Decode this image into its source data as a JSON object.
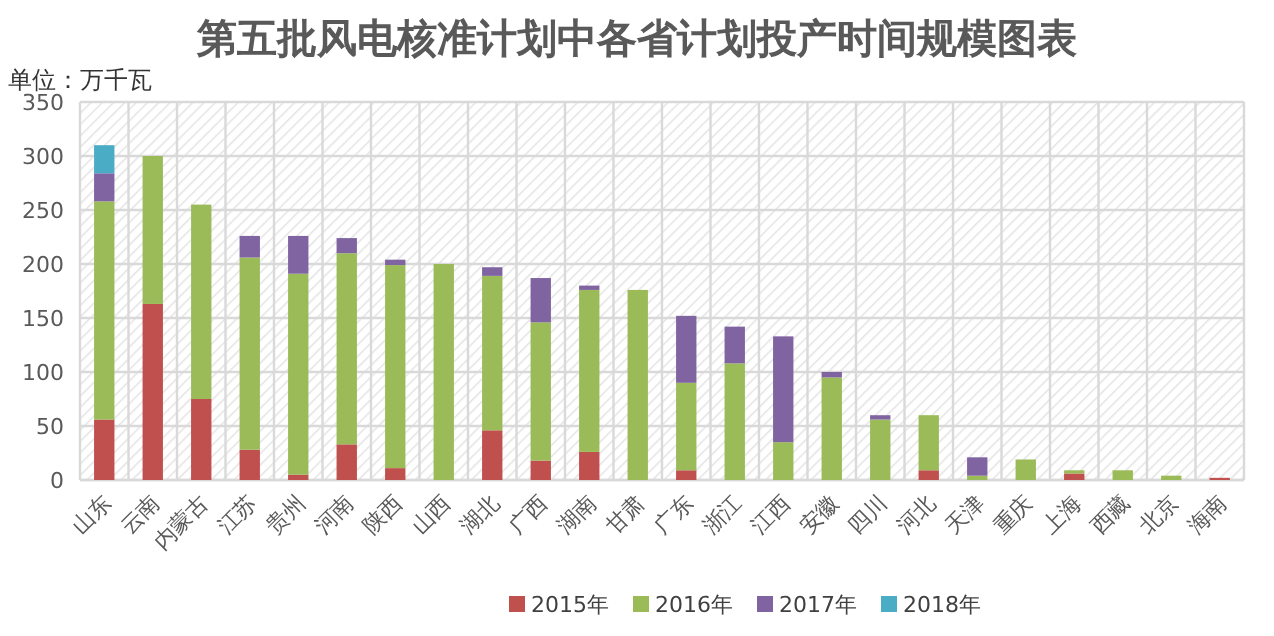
{
  "chart_data": {
    "type": "bar",
    "title": "第五批风电核准计划中各省计划投产时间规模图表",
    "ylabel": "单位：万千瓦",
    "stacked": true,
    "grid": true,
    "legend": "bottom",
    "categories": [
      "山东",
      "云南",
      "内蒙古",
      "江苏",
      "贵州",
      "河南",
      "陕西",
      "山西",
      "湖北",
      "广西",
      "湖南",
      "甘肃",
      "广东",
      "浙江",
      "江西",
      "安徽",
      "四川",
      "河北",
      "天津",
      "重庆",
      "上海",
      "西藏",
      "北京",
      "海南"
    ],
    "ylim": [
      0,
      350
    ],
    "yticks": [
      0,
      50,
      100,
      150,
      200,
      250,
      300,
      350
    ],
    "series": [
      {
        "name": "2015年",
        "color": "#c0504d",
        "values": [
          56,
          163,
          75,
          28,
          5,
          33,
          11,
          0,
          46,
          18,
          26,
          0,
          9,
          0,
          0,
          0,
          0,
          9,
          0,
          0,
          6,
          0,
          0,
          2
        ]
      },
      {
        "name": "2016年",
        "color": "#9bbb59",
        "values": [
          202,
          137,
          180,
          178,
          186,
          177,
          188,
          200,
          143,
          128,
          150,
          176,
          81,
          108,
          35,
          95,
          56,
          51,
          4,
          19,
          3,
          9,
          4,
          0
        ]
      },
      {
        "name": "2017年",
        "color": "#8064a2",
        "values": [
          26,
          0,
          0,
          20,
          35,
          14,
          5,
          0,
          8,
          41,
          4,
          0,
          62,
          34,
          98,
          5,
          4,
          0,
          17,
          0,
          0,
          0,
          0,
          0
        ]
      },
      {
        "name": "2018年",
        "color": "#4bacc6",
        "values": [
          26,
          0,
          0,
          0,
          0,
          0,
          0,
          0,
          0,
          0,
          0,
          0,
          0,
          0,
          0,
          0,
          0,
          0,
          0,
          0,
          0,
          0,
          0,
          0
        ]
      }
    ]
  }
}
